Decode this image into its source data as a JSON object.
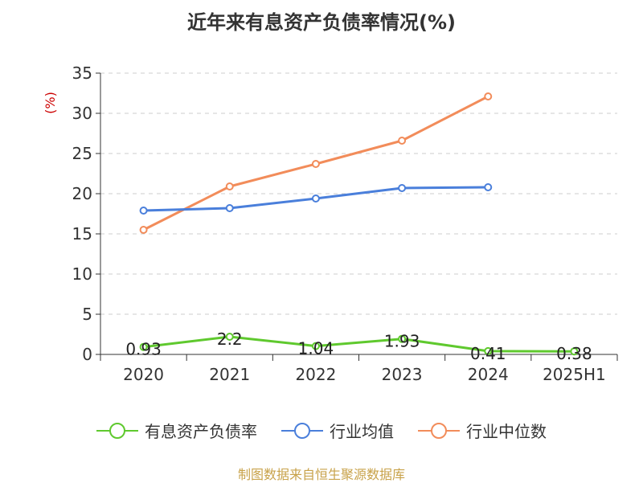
{
  "page": {
    "title": "近年来有息资产负债率情况(%)",
    "source": "制图数据来自恒生聚源数据库"
  },
  "chart_data": {
    "type": "line",
    "title": "近年来有息资产负债率情况(%)",
    "ylabel": "(%)",
    "xlabel": "",
    "categories": [
      "2020",
      "2021",
      "2022",
      "2023",
      "2024",
      "2025H1"
    ],
    "ylim": [
      0,
      35
    ],
    "yticks": [
      0,
      5,
      10,
      15,
      20,
      25,
      30,
      35
    ],
    "grid": true,
    "legend_position": "bottom",
    "series": [
      {
        "name": "有息资产负债率",
        "color": "#5fc92e",
        "values": [
          0.93,
          2.2,
          1.04,
          1.93,
          0.41,
          0.38
        ],
        "labels": [
          "0.93",
          "2.2",
          "1.04",
          "1.93",
          "0.41",
          "0.38"
        ]
      },
      {
        "name": "行业均值",
        "color": "#4a7fdb",
        "values": [
          17.9,
          18.2,
          19.4,
          20.7,
          20.8,
          null
        ]
      },
      {
        "name": "行业中位数",
        "color": "#f28c5a",
        "values": [
          15.5,
          20.9,
          23.7,
          26.6,
          32.1,
          null
        ]
      }
    ]
  }
}
